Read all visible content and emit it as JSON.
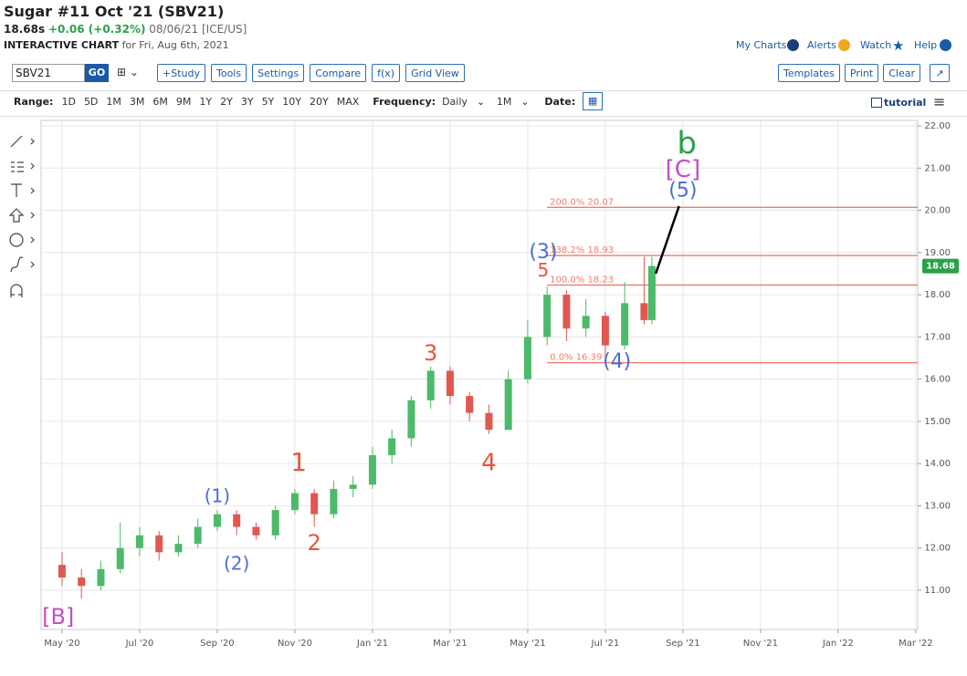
{
  "header": {
    "title": "Sugar #11 Oct '21 (SBV21)",
    "price": "18.68s",
    "change": "+0.06 (+0.32%)",
    "date": "08/06/21 [ICE/US]",
    "chart_label": "INTERACTIVE CHART",
    "chart_for": "for Fri, Aug 6th, 2021",
    "links": [
      "My Charts",
      "Alerts",
      "Watch",
      "Help"
    ]
  },
  "toolbar": {
    "symbol": "SBV21",
    "go": "GO",
    "buttons": [
      "+Study",
      "Tools",
      "Settings",
      "Compare",
      "f(x)",
      "Grid View"
    ],
    "right_buttons": [
      "Templates",
      "Print",
      "Clear"
    ]
  },
  "rangebar": {
    "range_label": "Range:",
    "ranges": [
      "1D",
      "5D",
      "1M",
      "3M",
      "6M",
      "9M",
      "1Y",
      "2Y",
      "3Y",
      "5Y",
      "10Y",
      "20Y",
      "MAX"
    ],
    "frequency_label": "Frequency:",
    "frequency": "Daily",
    "interval": "1M",
    "date_label": "Date:",
    "tutorial": "tutorial"
  },
  "chart_data": {
    "type": "candlestick",
    "x": [
      0,
      0.5,
      1,
      1.5,
      2,
      2.5,
      3,
      3.5,
      4,
      4.5,
      5,
      5.5,
      6,
      6.5,
      7,
      7.5,
      8,
      8.5,
      9,
      9.5,
      10,
      10.5,
      11,
      11.5,
      12,
      12.5,
      13,
      13.5,
      14,
      14.5,
      15,
      15.2
    ],
    "candles": [
      [
        11.6,
        11.9,
        11.1,
        11.3
      ],
      [
        11.3,
        11.5,
        10.8,
        11.1
      ],
      [
        11.1,
        11.7,
        11.0,
        11.5
      ],
      [
        11.5,
        12.6,
        11.4,
        12.0
      ],
      [
        12.0,
        12.5,
        11.8,
        12.3
      ],
      [
        12.3,
        12.4,
        11.7,
        11.9
      ],
      [
        11.9,
        12.3,
        11.8,
        12.1
      ],
      [
        12.1,
        12.7,
        12.0,
        12.5
      ],
      [
        12.5,
        12.9,
        12.4,
        12.8
      ],
      [
        12.8,
        12.9,
        12.3,
        12.5
      ],
      [
        12.5,
        12.6,
        12.2,
        12.3
      ],
      [
        12.3,
        13.0,
        12.2,
        12.9
      ],
      [
        12.9,
        13.4,
        12.8,
        13.3
      ],
      [
        13.3,
        13.4,
        12.5,
        12.8
      ],
      [
        12.8,
        13.6,
        12.7,
        13.4
      ],
      [
        13.4,
        13.7,
        13.2,
        13.5
      ],
      [
        13.5,
        14.4,
        13.4,
        14.2
      ],
      [
        14.2,
        14.8,
        14.0,
        14.6
      ],
      [
        14.6,
        15.6,
        14.4,
        15.5
      ],
      [
        15.5,
        16.3,
        15.3,
        16.2
      ],
      [
        16.2,
        16.3,
        15.4,
        15.6
      ],
      [
        15.6,
        15.7,
        15.0,
        15.2
      ],
      [
        15.2,
        15.4,
        14.7,
        14.8
      ],
      [
        14.8,
        16.2,
        14.8,
        16.0
      ],
      [
        16.0,
        17.4,
        15.9,
        17.0
      ],
      [
        17.0,
        18.2,
        16.8,
        18.0
      ],
      [
        18.0,
        18.1,
        16.9,
        17.2
      ],
      [
        17.2,
        17.9,
        17.0,
        17.5
      ],
      [
        17.5,
        17.6,
        16.4,
        16.8
      ],
      [
        16.8,
        18.3,
        16.7,
        17.8
      ],
      [
        17.8,
        18.9,
        17.3,
        17.4
      ],
      [
        17.4,
        18.9,
        17.3,
        18.68
      ]
    ],
    "up_color": "#4cba6a",
    "down_color": "#e0584f",
    "xlim": [
      -0.54,
      22.05
    ],
    "xticks": [
      {
        "value": 0,
        "label": "May '20"
      },
      {
        "value": 2,
        "label": "Jul '20"
      },
      {
        "value": 4,
        "label": "Sep '20"
      },
      {
        "value": 6,
        "label": "Nov '20"
      },
      {
        "value": 8,
        "label": "Jan '21"
      },
      {
        "value": 10,
        "label": "Mar '21"
      },
      {
        "value": 12,
        "label": "May '21"
      },
      {
        "value": 14,
        "label": "Jul '21"
      },
      {
        "value": 16,
        "label": "Sep '21"
      },
      {
        "value": 18,
        "label": "Nov '21"
      },
      {
        "value": 20,
        "label": "Jan '22"
      },
      {
        "value": 22,
        "label": "Mar '22"
      }
    ],
    "ylim": [
      10.07,
      22.13
    ],
    "yticks": [
      {
        "value": 11,
        "label": "11.00"
      },
      {
        "value": 12,
        "label": "12.00"
      },
      {
        "value": 13,
        "label": "13.00"
      },
      {
        "value": 14,
        "label": "14.00"
      },
      {
        "value": 15,
        "label": "15.00"
      },
      {
        "value": 16,
        "label": "16.00"
      },
      {
        "value": 17,
        "label": "17.00"
      },
      {
        "value": 18,
        "label": "18.00"
      },
      {
        "value": 19,
        "label": "19.00"
      },
      {
        "value": 20,
        "label": "20.00"
      },
      {
        "value": 21,
        "label": "21.00"
      },
      {
        "value": 22,
        "label": "22.00"
      }
    ],
    "grid": true,
    "last_price": {
      "value": 18.68,
      "label": "18.68"
    },
    "last_price_color": "#2aa14a",
    "fib_start": 12.5,
    "fib_color": "#ef7c6c",
    "fib_levels": [
      {
        "value": 20.07,
        "label": "200.0% 20.07"
      },
      {
        "value": 18.93,
        "label": "138.2% 18.93"
      },
      {
        "value": 18.23,
        "label": "100.0% 18.23"
      },
      {
        "value": 16.39,
        "label": "0.0% 16.39"
      }
    ],
    "trend_line": {
      "x": [
        15.3,
        15.9
      ],
      "y": [
        18.5,
        20.1
      ]
    },
    "annotations": [
      {
        "text": "[B]",
        "x": -0.1,
        "y": 10.35,
        "color": "#c050c0",
        "size": 24
      },
      {
        "text": "(1)",
        "x": 4.0,
        "y": 13.2,
        "color": "#4a6cd4",
        "size": 20
      },
      {
        "text": "(2)",
        "x": 4.5,
        "y": 11.6,
        "color": "#4a6cd4",
        "size": 20
      },
      {
        "text": "1",
        "x": 6.1,
        "y": 14.0,
        "color": "#e8553b",
        "size": 28
      },
      {
        "text": "2",
        "x": 6.5,
        "y": 12.1,
        "color": "#e8553b",
        "size": 24
      },
      {
        "text": "3",
        "x": 9.5,
        "y": 16.6,
        "color": "#e8553b",
        "size": 24
      },
      {
        "text": "4",
        "x": 11.0,
        "y": 14.0,
        "color": "#e8553b",
        "size": 26
      },
      {
        "text": "(3)",
        "x": 12.4,
        "y": 19.0,
        "color": "#4a6cd4",
        "size": 22
      },
      {
        "text": "5",
        "x": 12.4,
        "y": 18.55,
        "color": "#e8553b",
        "size": 20
      },
      {
        "text": "(4)",
        "x": 14.3,
        "y": 16.4,
        "color": "#4a6cd4",
        "size": 22
      },
      {
        "text": "(5)",
        "x": 16.0,
        "y": 20.45,
        "color": "#4a6cd4",
        "size": 22
      },
      {
        "text": "[C]",
        "x": 16.0,
        "y": 20.95,
        "color": "#c050c0",
        "size": 26
      },
      {
        "text": "b",
        "x": 16.1,
        "y": 21.55,
        "color": "#2aa14a",
        "size": 34
      }
    ]
  }
}
